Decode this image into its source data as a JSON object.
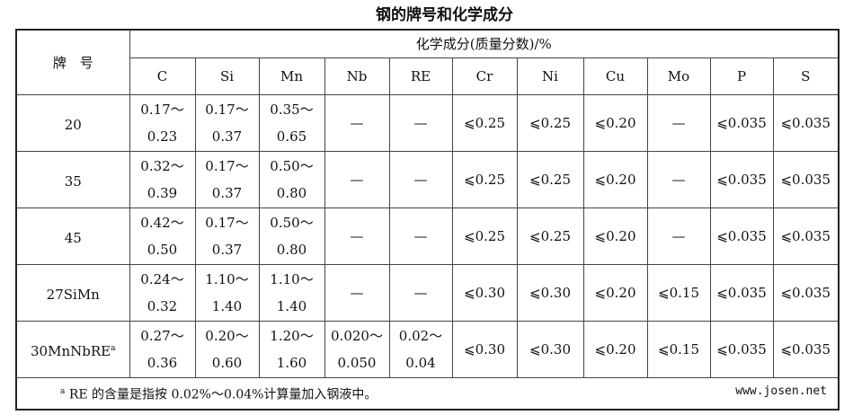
{
  "title": "钢的牌号和化学成分",
  "table": {
    "grade_header": "牌　号",
    "group_header": "化学成分(质量分数)/%",
    "columns": [
      "C",
      "Si",
      "Mn",
      "Nb",
      "RE",
      "Cr",
      "Ni",
      "Cu",
      "Mo",
      "P",
      "S"
    ],
    "rows": [
      {
        "grade": "20",
        "sup": "",
        "cells": [
          [
            "0.17～",
            "0.23"
          ],
          [
            "0.17～",
            "0.37"
          ],
          [
            "0.35～",
            "0.65"
          ],
          [
            "—"
          ],
          [
            "—"
          ],
          [
            "⩽0.25"
          ],
          [
            "⩽0.25"
          ],
          [
            "⩽0.20"
          ],
          [
            "—"
          ],
          [
            "⩽0.035"
          ],
          [
            "⩽0.035"
          ]
        ]
      },
      {
        "grade": "35",
        "sup": "",
        "cells": [
          [
            "0.32～",
            "0.39"
          ],
          [
            "0.17～",
            "0.37"
          ],
          [
            "0.50～",
            "0.80"
          ],
          [
            "—"
          ],
          [
            "—"
          ],
          [
            "⩽0.25"
          ],
          [
            "⩽0.25"
          ],
          [
            "⩽0.20"
          ],
          [
            "—"
          ],
          [
            "⩽0.035"
          ],
          [
            "⩽0.035"
          ]
        ]
      },
      {
        "grade": "45",
        "sup": "",
        "cells": [
          [
            "0.42～",
            "0.50"
          ],
          [
            "0.17～",
            "0.37"
          ],
          [
            "0.50～",
            "0.80"
          ],
          [
            "—"
          ],
          [
            "—"
          ],
          [
            "⩽0.25"
          ],
          [
            "⩽0.25"
          ],
          [
            "⩽0.20"
          ],
          [
            "—"
          ],
          [
            "⩽0.035"
          ],
          [
            "⩽0.035"
          ]
        ]
      },
      {
        "grade": "27SiMn",
        "sup": "",
        "cells": [
          [
            "0.24～",
            "0.32"
          ],
          [
            "1.10～",
            "1.40"
          ],
          [
            "1.10～",
            "1.40"
          ],
          [
            "—"
          ],
          [
            "—"
          ],
          [
            "⩽0.30"
          ],
          [
            "⩽0.30"
          ],
          [
            "⩽0.20"
          ],
          [
            "⩽0.15"
          ],
          [
            "⩽0.035"
          ],
          [
            "⩽0.035"
          ]
        ]
      },
      {
        "grade": "30MnNbRE",
        "sup": "a",
        "cells": [
          [
            "0.27～",
            "0.36"
          ],
          [
            "0.20～",
            "0.60"
          ],
          [
            "1.20～",
            "1.60"
          ],
          [
            "0.020～",
            "0.050"
          ],
          [
            "0.02～",
            "0.04"
          ],
          [
            "⩽0.30"
          ],
          [
            "⩽0.30"
          ],
          [
            "⩽0.20"
          ],
          [
            "⩽0.15"
          ],
          [
            "⩽0.035"
          ],
          [
            "⩽0.035"
          ]
        ]
      }
    ],
    "footnote_mark": "a",
    "footnote": " RE 的含量是指按 0.02%～0.04%计算量加入钢液中。",
    "watermark": "www.josen.net"
  }
}
